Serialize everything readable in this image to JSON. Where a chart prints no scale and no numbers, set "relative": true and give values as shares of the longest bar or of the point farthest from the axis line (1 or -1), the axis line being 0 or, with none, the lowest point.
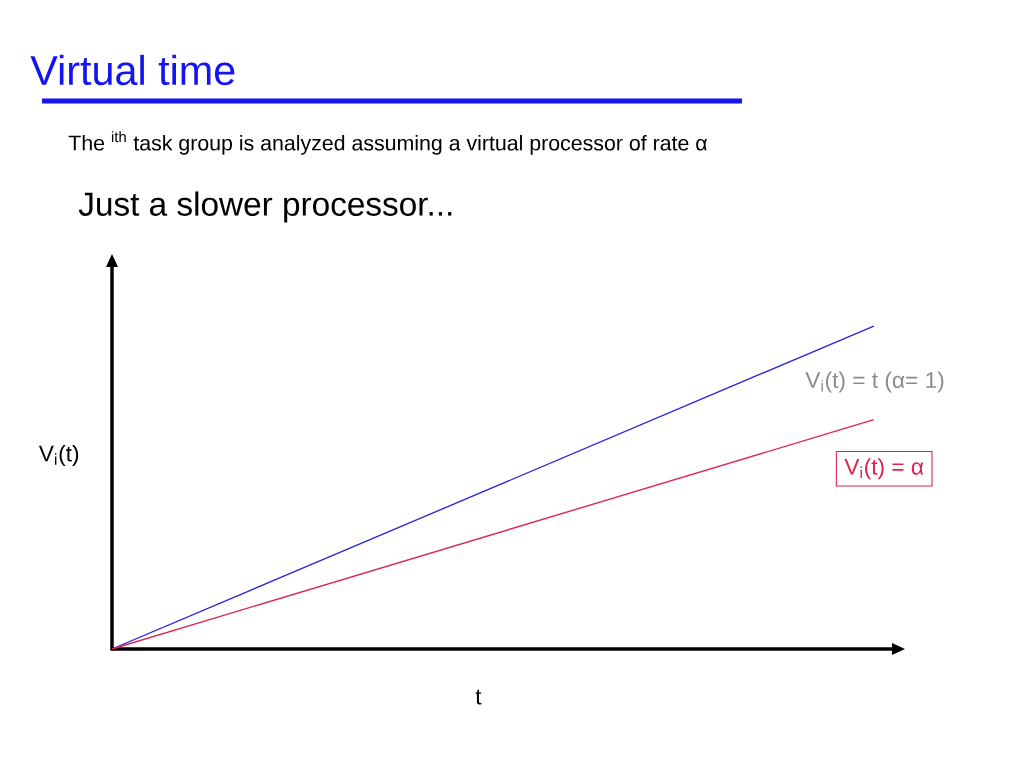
{
  "chart_data": {
    "type": "line",
    "title": "Virtual time",
    "subtitle": "The $^{ith}$ task group is analyzed assuming a virtual processor of rate α",
    "annotations": [
      "Just a slower processor...",
      "V$_{i}$(t) = t (α= 1)"
    ],
    "xlabel": "t",
    "ylabel": "V$_{i}$(t)",
    "relative": true,
    "categories": [
      null,
      null
    ],
    "series": [
      {
        "color": "#2424e0",
        "values": [
          0,
          1
        ]
      },
      {
        "name": "V$_{i}$(t) = α",
        "color": "#e0204f",
        "values": [
          0,
          0.71
        ]
      }
    ]
  }
}
